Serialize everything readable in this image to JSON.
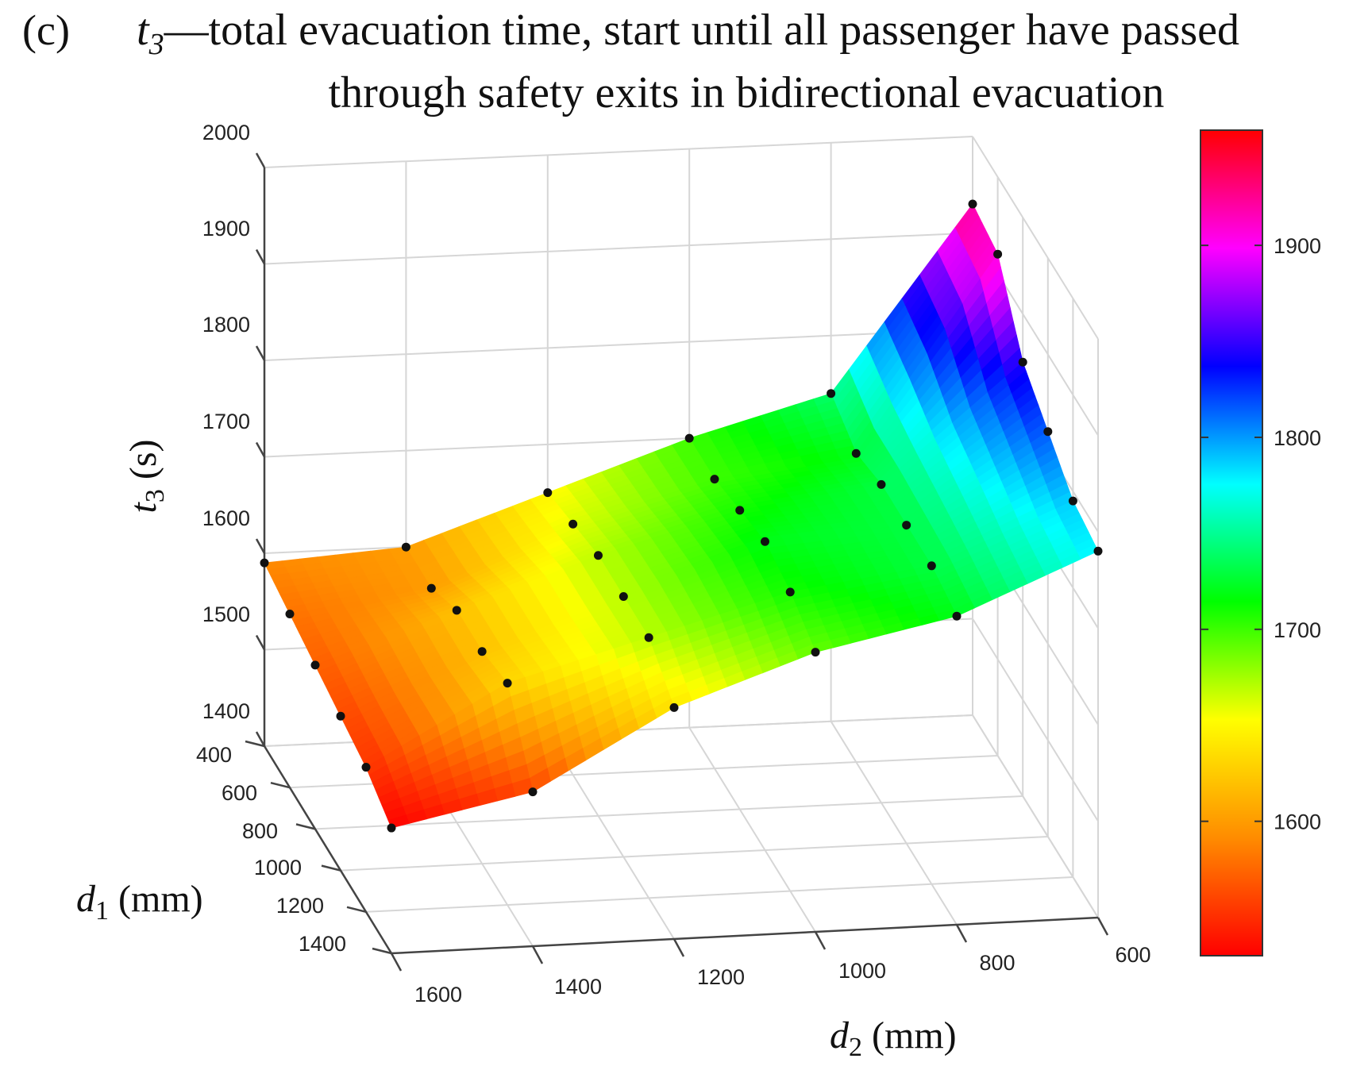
{
  "figure": {
    "panel_label": "(c)",
    "title_var": "t",
    "title_sub": "3",
    "title_line1_rest": "—total evacuation time, start until all passenger have passed",
    "title_line2": "through safety exits in bidirectional evacuation"
  },
  "chart_data": {
    "type": "surface3d",
    "title": "t3—total evacuation time, start until all passenger have passed through safety exits in bidirectional evacuation",
    "zlabel": {
      "var": "t",
      "sub": "3",
      "unit": " (s)"
    },
    "xlabel": {
      "var": "d",
      "sub": "2",
      "unit": " (mm)"
    },
    "ylabel": {
      "var": "d",
      "sub": "1",
      "unit": " (mm)"
    },
    "zlim": [
      1400,
      2000
    ],
    "z_ticks": [
      "2000",
      "1900",
      "1800",
      "1700",
      "1600",
      "1500",
      "1400"
    ],
    "d1_ticks": [
      "400",
      "600",
      "800",
      "1000",
      "1200",
      "1400"
    ],
    "d2_ticks": [
      "1600",
      "1400",
      "1200",
      "1000",
      "800",
      "600"
    ],
    "colorbar": {
      "ticks": [
        "1900",
        "1800",
        "1700",
        "1600"
      ],
      "range": [
        1530,
        1960
      ],
      "stops": [
        "#ff0000",
        "#ff8c00",
        "#ffff00",
        "#00ff00",
        "#00ffff",
        "#0000ff",
        "#ff00ff",
        "#ff0000"
      ]
    },
    "d1": [
      400,
      600,
      800,
      1000,
      1200,
      1400
    ],
    "d2": [
      1600,
      1400,
      1200,
      1000,
      800,
      600
    ],
    "t3": [
      [
        1590,
        1600,
        1650,
        1700,
        1740,
        1930
      ],
      [
        1580,
        1600,
        1660,
        1700,
        1720,
        1920
      ],
      [
        1570,
        1620,
        1670,
        1710,
        1730,
        1850
      ],
      [
        1560,
        1620,
        1670,
        1720,
        1730,
        1820
      ],
      [
        1550,
        1630,
        1670,
        1710,
        1730,
        1790
      ],
      [
        1530,
        1560,
        1640,
        1690,
        1720,
        1780
      ]
    ]
  }
}
